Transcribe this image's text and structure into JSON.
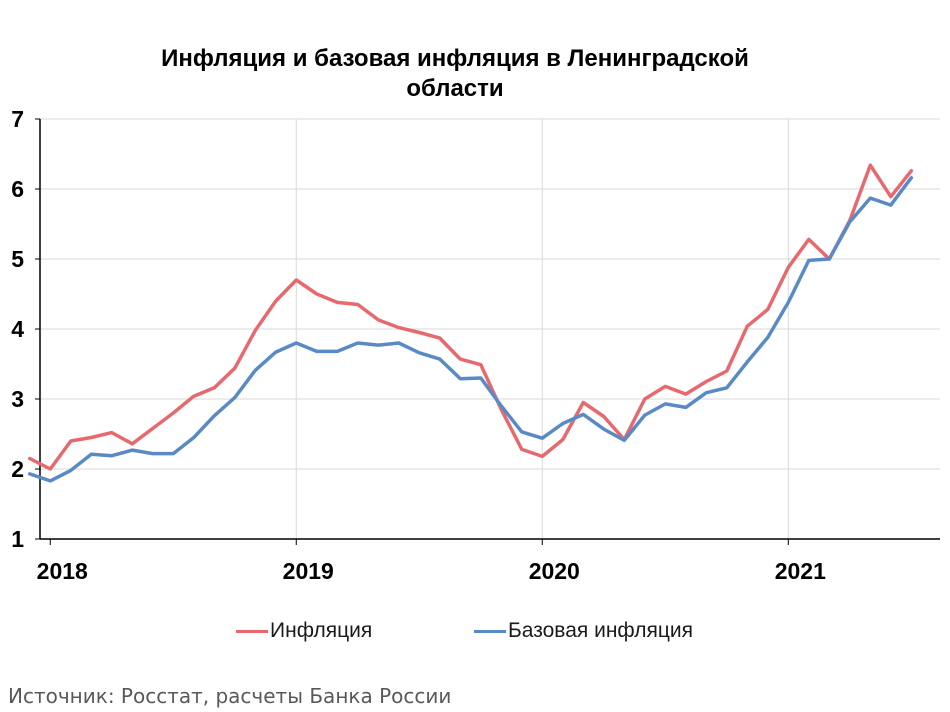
{
  "colors": {
    "inflation": "#e8696d",
    "core_inflation": "#5a8ac6",
    "grid": "#d9d9d9",
    "axis": "#000000"
  },
  "source": "Источник: Росстат, расчеты Банка России",
  "chart_data": {
    "type": "line",
    "title_lines": [
      "Инфляция и базовая инфляция в Ленинградской",
      "области"
    ],
    "xlabel": "",
    "ylabel": "",
    "ylim": [
      1,
      7
    ],
    "yticks": [
      "1",
      "2",
      "3",
      "4",
      "5",
      "6",
      "7"
    ],
    "grid": true,
    "legend_position": "bottom",
    "x_ticks": [
      {
        "label": "2018",
        "index": 1
      },
      {
        "label": "2019",
        "index": 13
      },
      {
        "label": "2020",
        "index": 25
      },
      {
        "label": "2021",
        "index": 37
      }
    ],
    "x_range": [
      0.5,
      44.4
    ],
    "series": [
      {
        "name": "Инфляция",
        "color_key": "inflation",
        "values": [
          2.15,
          2.0,
          2.4,
          2.45,
          2.52,
          2.36,
          2.58,
          2.8,
          3.04,
          3.16,
          3.44,
          3.98,
          4.4,
          4.7,
          4.5,
          4.38,
          4.35,
          4.13,
          4.02,
          3.95,
          3.87,
          3.57,
          3.49,
          2.85,
          2.28,
          2.18,
          2.42,
          2.95,
          2.75,
          2.42,
          3.0,
          3.18,
          3.07,
          3.25,
          3.4,
          4.04,
          4.28,
          4.88,
          5.28,
          5.0,
          5.55,
          6.34,
          5.89,
          6.26
        ]
      },
      {
        "name": "Базовая инфляция",
        "color_key": "core_inflation",
        "values": [
          1.93,
          1.83,
          1.98,
          2.21,
          2.19,
          2.27,
          2.22,
          2.22,
          2.45,
          2.76,
          3.02,
          3.41,
          3.67,
          3.8,
          3.68,
          3.68,
          3.8,
          3.77,
          3.8,
          3.66,
          3.57,
          3.29,
          3.3,
          2.9,
          2.53,
          2.44,
          2.65,
          2.78,
          2.57,
          2.41,
          2.77,
          2.93,
          2.88,
          3.09,
          3.16,
          3.53,
          3.88,
          4.38,
          4.98,
          5.0,
          5.53,
          5.87,
          5.77,
          6.16
        ]
      }
    ]
  }
}
